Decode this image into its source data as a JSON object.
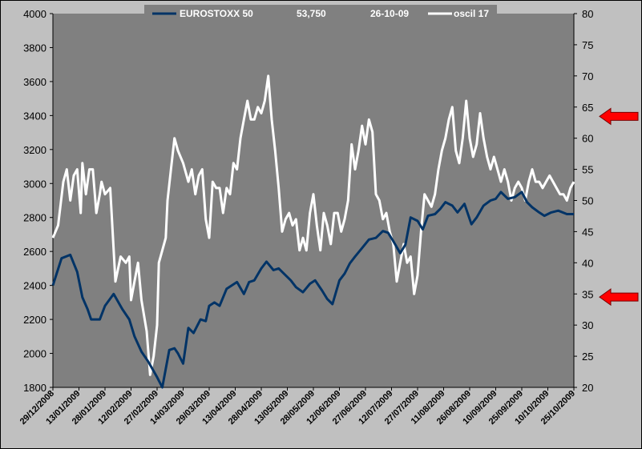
{
  "chart_data": {
    "type": "line",
    "title": "",
    "legend": {
      "placement": "top",
      "series_a_label": "EUROSTOXX 50",
      "value": "53,750",
      "date": "26-10-09",
      "series_b_label": "oscil 17"
    },
    "x_tick_labels": [
      "29/12/2008",
      "13/01/2009",
      "28/01/2009",
      "12/02/2009",
      "27/02/2009",
      "14/03/2009",
      "29/03/2009",
      "13/04/2009",
      "28/04/2009",
      "13/05/2009",
      "28/05/2009",
      "12/06/2009",
      "27/06/2009",
      "12/07/2009",
      "27/07/2009",
      "11/08/2009",
      "26/08/2009",
      "10/09/2009",
      "25/09/2009",
      "10/10/2009",
      "25/10/2009"
    ],
    "y_left": {
      "min": 1800,
      "max": 4000,
      "step": 200,
      "ticks": [
        1800,
        2000,
        2200,
        2400,
        2600,
        2800,
        3000,
        3200,
        3400,
        3600,
        3800,
        4000
      ]
    },
    "y_right": {
      "min": 20,
      "max": 80,
      "step": 5,
      "ticks": [
        20,
        25,
        30,
        35,
        40,
        45,
        50,
        55,
        60,
        65,
        70,
        75,
        80
      ]
    },
    "grid": false,
    "series": [
      {
        "name": "EUROSTOXX 50",
        "axis": "left",
        "color": "#003366",
        "x_day": [
          0,
          5,
          10,
          14,
          17,
          20,
          22,
          27,
          30,
          35,
          40,
          44,
          47,
          51,
          55,
          60,
          63,
          67,
          70,
          72,
          75,
          78,
          81,
          85,
          88,
          90,
          93,
          96,
          100,
          103,
          106,
          110,
          113,
          116,
          120,
          123,
          127,
          130,
          134,
          137,
          140,
          144,
          148,
          151,
          155,
          158,
          161,
          165,
          168,
          171,
          174,
          178,
          182,
          186,
          190,
          193,
          196,
          200,
          203,
          206,
          210,
          213,
          216,
          220,
          223,
          226,
          230,
          233,
          237,
          241,
          244,
          248,
          252,
          255,
          258,
          262,
          266,
          270,
          273,
          276,
          280,
          283,
          287,
          291,
          296,
          300
        ],
        "values": [
          2400,
          2560,
          2580,
          2480,
          2330,
          2260,
          2200,
          2200,
          2280,
          2350,
          2260,
          2200,
          2100,
          2010,
          1950,
          1860,
          1800,
          2020,
          2030,
          2000,
          1940,
          2150,
          2120,
          2200,
          2190,
          2280,
          2300,
          2280,
          2380,
          2400,
          2420,
          2350,
          2420,
          2430,
          2500,
          2540,
          2490,
          2500,
          2460,
          2430,
          2390,
          2360,
          2410,
          2430,
          2370,
          2320,
          2290,
          2430,
          2470,
          2530,
          2570,
          2620,
          2670,
          2680,
          2720,
          2710,
          2660,
          2590,
          2640,
          2800,
          2780,
          2730,
          2810,
          2820,
          2850,
          2890,
          2870,
          2830,
          2880,
          2760,
          2800,
          2870,
          2900,
          2910,
          2950,
          2910,
          2920,
          2950,
          2890,
          2860,
          2830,
          2810,
          2830,
          2840,
          2820,
          2820
        ]
      },
      {
        "name": "oscil 17",
        "axis": "right",
        "color": "#ffffff",
        "x_day": [
          0,
          3,
          6,
          8,
          10,
          12,
          14,
          16,
          17,
          19,
          21,
          23,
          25,
          27,
          28,
          30,
          33,
          36,
          39,
          42,
          44,
          45,
          47,
          49,
          51,
          54,
          56,
          58,
          60,
          61,
          63,
          65,
          66,
          68,
          70,
          72,
          75,
          78,
          80,
          82,
          84,
          86,
          88,
          90,
          92,
          94,
          96,
          98,
          100,
          102,
          104,
          106,
          108,
          110,
          112,
          114,
          116,
          118,
          120,
          122,
          124,
          126,
          128,
          130,
          132,
          134,
          136,
          138,
          140,
          142,
          144,
          146,
          148,
          150,
          152,
          154,
          156,
          158,
          160,
          162,
          164,
          166,
          168,
          170,
          172,
          174,
          176,
          178,
          180,
          182,
          184,
          186,
          188,
          190,
          192,
          194,
          196,
          198,
          200,
          202,
          204,
          206,
          208,
          210,
          212,
          214,
          216,
          218,
          220,
          222,
          224,
          226,
          228,
          230,
          232,
          234,
          236,
          238,
          240,
          242,
          244,
          246,
          248,
          250,
          252,
          254,
          256,
          258,
          260,
          262,
          264,
          266,
          268,
          270,
          272,
          274,
          276,
          278,
          280,
          282,
          284,
          286,
          288,
          290,
          292,
          294,
          296,
          298,
          300
        ],
        "values": [
          44,
          46,
          53,
          55,
          50,
          54,
          55,
          48,
          56,
          51,
          55,
          55,
          48,
          51,
          53,
          51,
          52,
          37,
          41,
          40,
          41,
          34,
          37,
          40,
          34,
          29,
          22,
          25,
          30,
          40,
          42,
          44,
          50,
          55,
          60,
          58,
          56,
          53,
          55,
          51,
          54,
          55,
          47,
          44,
          53,
          52,
          52,
          48,
          52,
          51,
          56,
          55,
          60,
          63,
          66,
          63,
          63,
          65,
          64,
          66,
          70,
          63,
          58,
          52,
          45,
          47,
          48,
          46,
          47,
          42,
          44,
          42,
          48,
          51,
          46,
          42,
          48,
          46,
          43,
          48,
          48,
          45,
          47,
          50,
          59,
          55,
          58,
          62,
          59,
          63,
          61,
          51,
          50,
          47,
          48,
          45,
          43,
          37,
          40,
          43,
          40,
          41,
          35,
          38,
          45,
          51,
          50,
          49,
          51,
          55,
          58,
          60,
          63,
          65,
          58,
          56,
          60,
          66,
          60,
          57,
          59,
          64,
          60,
          57,
          55,
          57,
          55,
          53,
          55,
          53,
          50,
          52,
          53,
          52,
          50,
          53,
          55,
          53,
          53,
          52,
          53,
          54,
          53,
          52,
          51,
          51,
          50,
          52,
          53
        ]
      }
    ],
    "annotations": [
      {
        "type": "arrow",
        "color": "#ff0000",
        "right_axis_value": 63.5
      },
      {
        "type": "arrow",
        "color": "#ff0000",
        "right_axis_value": 34.5
      }
    ]
  }
}
